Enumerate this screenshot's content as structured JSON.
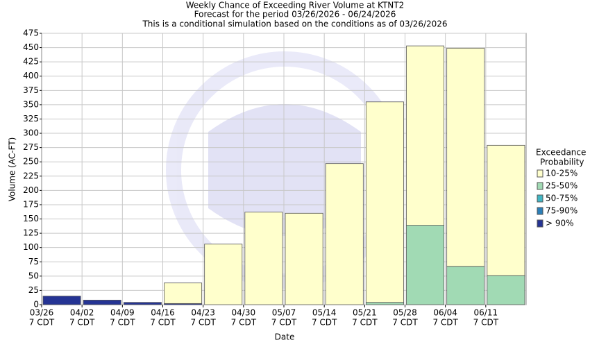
{
  "chart_data": {
    "type": "bar",
    "title": [
      "Weekly Chance of Exceeding River Volume at KTNT2",
      "Forecast for the period 03/26/2026 - 06/24/2026",
      "This is a conditional simulation based on the conditions as of 03/26/2026"
    ],
    "x_label": "Date",
    "y_label": "Volume (AC-FT)",
    "categories": [
      "03/26",
      "04/02",
      "04/09",
      "04/16",
      "04/23",
      "04/30",
      "05/07",
      "05/14",
      "05/21",
      "05/28",
      "06/04",
      "06/11"
    ],
    "category_sublabels": [
      "7 CDT",
      "7 CDT",
      "7 CDT",
      "7 CDT",
      "7 CDT",
      "7 CDT",
      "7 CDT",
      "7 CDT",
      "7 CDT",
      "7 CDT",
      "7 CDT",
      "7 CDT"
    ],
    "stacked": true,
    "legend_title": [
      "Exceedance",
      "Probability"
    ],
    "series": [
      {
        "name": "> 90%",
        "color": "#253494",
        "values": [
          15,
          8,
          4,
          2,
          0,
          0,
          0,
          0,
          0,
          0,
          0,
          0
        ]
      },
      {
        "name": "75-90%",
        "color": "#2c7fb8",
        "values": [
          0,
          0,
          0,
          0,
          0,
          0,
          0,
          0,
          0,
          0,
          0,
          0
        ]
      },
      {
        "name": "50-75%",
        "color": "#41b6c4",
        "values": [
          0,
          0,
          0,
          0,
          0,
          0,
          0,
          0,
          0,
          0,
          0,
          0
        ]
      },
      {
        "name": "25-50%",
        "color": "#a1dab4",
        "values": [
          0,
          0,
          0,
          0,
          0,
          0,
          0,
          0,
          4,
          139,
          67,
          51
        ]
      },
      {
        "name": "10-25%",
        "color": "#ffffcc",
        "values": [
          0,
          0,
          0,
          36,
          106,
          162,
          160,
          247,
          351,
          314,
          382,
          228
        ]
      }
    ],
    "ylim": [
      0,
      475
    ],
    "yticks": [
      0,
      25,
      50,
      75,
      100,
      125,
      150,
      175,
      200,
      225,
      250,
      275,
      300,
      325,
      350,
      375,
      400,
      425,
      450,
      475
    ],
    "grid": true
  }
}
